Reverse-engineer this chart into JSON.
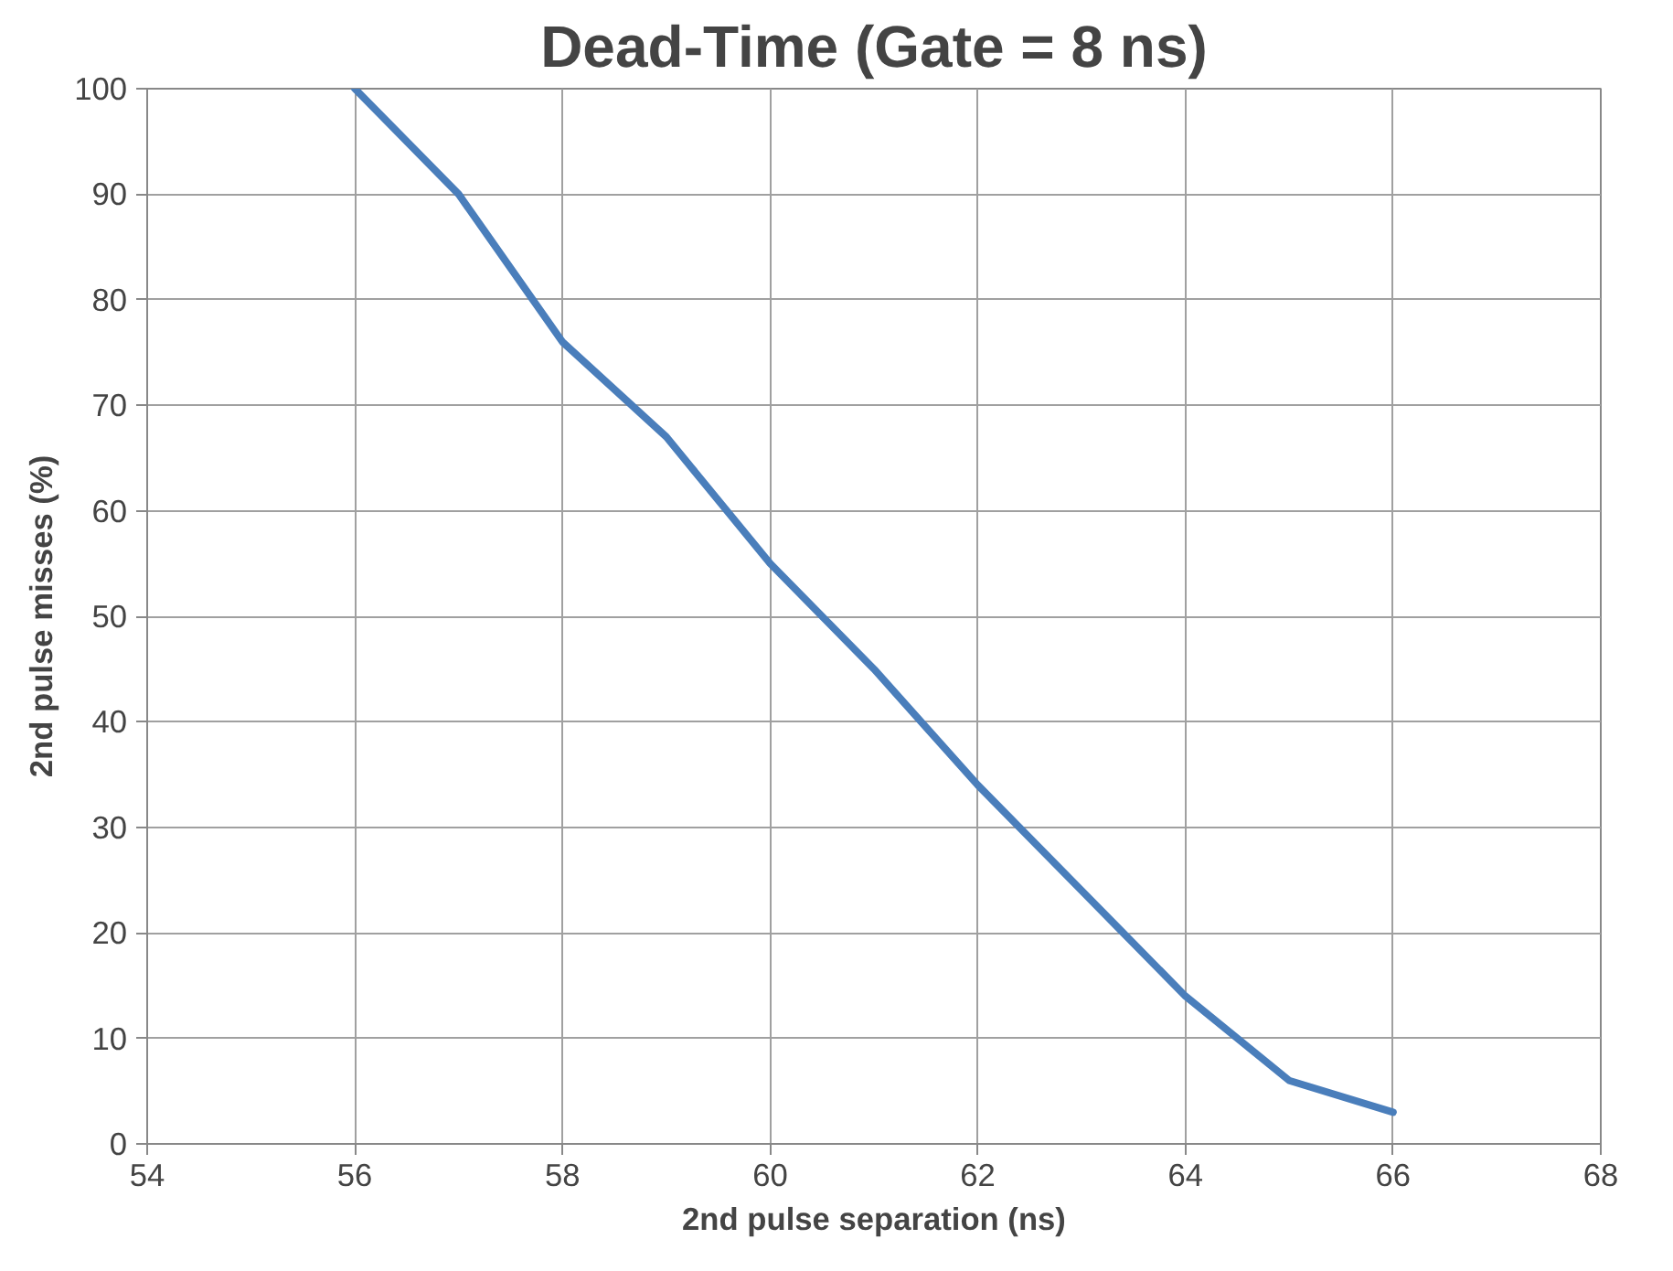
{
  "chart_data": {
    "type": "line",
    "title": "Dead-Time (Gate = 8 ns)",
    "xlabel": "2nd pulse separation (ns)",
    "ylabel": "2nd pulse misses (%)",
    "x": [
      56,
      57,
      58,
      59,
      60,
      61,
      62,
      63,
      64,
      65,
      66
    ],
    "series": [
      {
        "color": "#4a7ebb",
        "values": [
          100,
          90,
          76,
          67,
          55,
          45,
          34,
          24,
          14,
          6,
          3
        ]
      }
    ],
    "xlim": [
      54,
      68
    ],
    "xticks": [
      54,
      56,
      58,
      60,
      62,
      64,
      66,
      68
    ],
    "ylim": [
      0,
      100
    ],
    "yticks": [
      0,
      10,
      20,
      30,
      40,
      50,
      60,
      70,
      80,
      90,
      100
    ],
    "grid": true,
    "marker": "none",
    "line_style": "solid"
  }
}
